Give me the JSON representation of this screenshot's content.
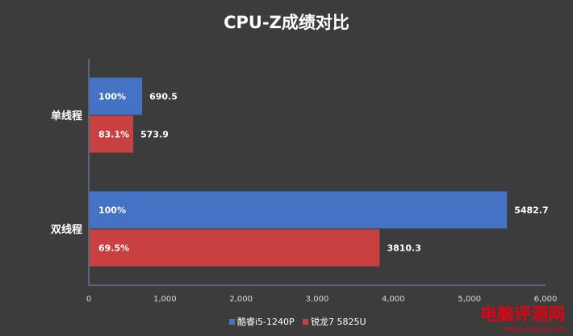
{
  "chart_data": {
    "type": "bar",
    "orientation": "horizontal",
    "title": "CPU-Z成绩对比",
    "categories": [
      "单线程",
      "双线程"
    ],
    "series": [
      {
        "name": "酷睿i5-1240P",
        "color": "#4472c4",
        "values": [
          690.5,
          5482.7
        ],
        "inner_labels": [
          "100%",
          "100%"
        ]
      },
      {
        "name": "锐龙7 5825U",
        "color": "#c94040",
        "values": [
          573.9,
          3810.3
        ],
        "inner_labels": [
          "83.1%",
          "69.5%"
        ]
      }
    ],
    "xlim": [
      0,
      6000
    ],
    "xticks": [
      0,
      1000,
      2000,
      3000,
      4000,
      5000,
      6000
    ],
    "xtick_labels": [
      "0",
      "1,000",
      "2,000",
      "3,000",
      "4,000",
      "5,000",
      "6,000"
    ],
    "value_labels": [
      [
        "690.5",
        "5482.7"
      ],
      [
        "573.9",
        "3810.3"
      ]
    ],
    "grid": false,
    "legend_position": "bottom"
  },
  "watermark": {
    "text": "电脑评测网",
    "url": "www.dnpcw.com"
  }
}
